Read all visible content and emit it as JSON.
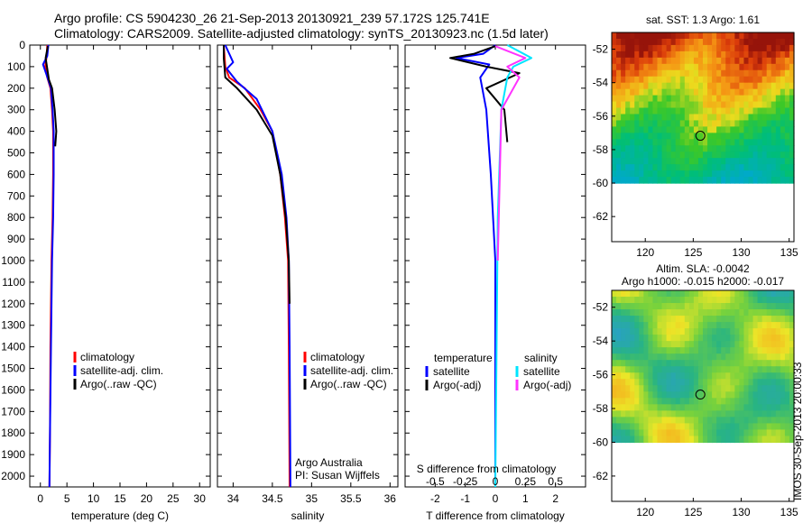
{
  "header": {
    "line1": "Argo profile: CS 5904230_26 21-Sep-2013 20130921_239 57.172S 125.741E",
    "line2": "Climatology: CARS2009. Satellite-adjusted climatology: synTS_20130923.nc (1.5d later)"
  },
  "colors": {
    "climatology": "#ff0000",
    "satellite": "#0000ff",
    "argo": "#000000",
    "sal_satellite": "#00e5ff",
    "sal_argo": "#ff33ff"
  },
  "chart_data": [
    {
      "type": "line",
      "id": "temperature",
      "xlabel": "temperature (deg C)",
      "ylabel": "",
      "xlim": [
        -2,
        32
      ],
      "ylim": [
        2050,
        0
      ],
      "xticks": [
        0,
        5,
        10,
        15,
        20,
        25,
        30
      ],
      "yticks": [
        0,
        100,
        200,
        300,
        400,
        500,
        600,
        700,
        800,
        900,
        1000,
        1100,
        1200,
        1300,
        1400,
        1500,
        1600,
        1700,
        1800,
        1900,
        2000
      ],
      "legend": {
        "items": [
          "climatology",
          "satellite-adj. clim.",
          "Argo(..raw -QC)"
        ],
        "placement": "center"
      },
      "series": [
        {
          "name": "climatology",
          "color": "#ff0000",
          "x": [
            1.3,
            1.2,
            0.9,
            1.3,
            1.9,
            2.2,
            2.4,
            2.4,
            2.3,
            2.1,
            1.9,
            1.8,
            1.7
          ],
          "y": [
            0,
            50,
            100,
            150,
            200,
            300,
            400,
            600,
            800,
            1000,
            1400,
            1800,
            2050
          ]
        },
        {
          "name": "satellite-adj. clim.",
          "color": "#0000ff",
          "x": [
            1.5,
            1.3,
            0.5,
            1.2,
            2.0,
            2.3,
            2.5,
            2.5,
            2.4,
            2.2,
            2.0,
            1.8,
            1.7
          ],
          "y": [
            0,
            50,
            90,
            140,
            200,
            300,
            400,
            600,
            800,
            1000,
            1400,
            1800,
            2050
          ]
        },
        {
          "name": "Argo(..raw -QC)",
          "color": "#000000",
          "x": [
            1.4,
            1.0,
            1.3,
            1.6,
            2.2,
            2.7,
            3.0,
            2.8
          ],
          "y": [
            5,
            60,
            110,
            160,
            200,
            300,
            400,
            470
          ]
        }
      ]
    },
    {
      "type": "line",
      "id": "salinity",
      "xlabel": "salinity",
      "xlim": [
        33.8,
        36.1
      ],
      "ylim": [
        2050,
        0
      ],
      "xticks": [
        34,
        34.5,
        35,
        35.5,
        36
      ],
      "legend": {
        "items": [
          "climatology",
          "satellite-adj. clim.",
          "Argo(..raw -QC)"
        ],
        "placement": "lower-center"
      },
      "annotations": [
        "Argo Australia",
        "PI: Susan Wijffels"
      ],
      "series": [
        {
          "name": "climatology",
          "color": "#ff0000",
          "x": [
            33.88,
            33.9,
            33.95,
            34.15,
            34.35,
            34.5,
            34.6,
            34.66,
            34.7,
            34.71,
            34.72
          ],
          "y": [
            0,
            100,
            150,
            200,
            300,
            400,
            600,
            800,
            1000,
            1400,
            2050
          ]
        },
        {
          "name": "satellite-adj. clim.",
          "color": "#0000ff",
          "x": [
            33.9,
            34.0,
            33.92,
            34.05,
            34.3,
            34.5,
            34.62,
            34.68,
            34.71,
            34.72,
            34.73
          ],
          "y": [
            0,
            80,
            110,
            170,
            250,
            400,
            600,
            800,
            1000,
            1400,
            2050
          ]
        },
        {
          "name": "Argo(..raw -QC)",
          "color": "#000000",
          "x": [
            33.88,
            33.88,
            33.9,
            34.05,
            34.3,
            34.5,
            34.6,
            34.67,
            34.71,
            34.72
          ],
          "y": [
            0,
            60,
            150,
            200,
            300,
            420,
            600,
            800,
            1000,
            1200
          ]
        }
      ]
    },
    {
      "type": "line",
      "id": "differences",
      "xlabel": "T difference from climatology",
      "x2label": "S difference from climatology",
      "xlim": [
        -3,
        3
      ],
      "x2lim": [
        -0.75,
        0.75
      ],
      "ylim": [
        2050,
        0
      ],
      "xticks": [
        -2,
        -1,
        0,
        1,
        2
      ],
      "x2ticks": [
        -0.5,
        -0.25,
        0,
        0.25,
        0.5
      ],
      "legend": {
        "placement": "lower-center",
        "temperature_heading": "temperature",
        "salinity_heading": "salinity",
        "items": [
          "satellite",
          "Argo(-adj)",
          "satellite",
          "Argo(-adj)"
        ]
      },
      "series": [
        {
          "name": "T satellite",
          "color": "#0000ff",
          "x": [
            0.0,
            -0.4,
            -1.3,
            -0.2,
            -0.5,
            -0.3,
            -0.15,
            0.0,
            0.0
          ],
          "y": [
            0,
            40,
            60,
            90,
            150,
            300,
            600,
            1000,
            2050
          ]
        },
        {
          "name": "T Argo(-adj)",
          "color": "#000000",
          "x": [
            0.0,
            -0.7,
            -1.5,
            -0.3,
            0.8,
            -0.3,
            0.3,
            0.4
          ],
          "y": [
            5,
            40,
            60,
            100,
            130,
            200,
            300,
            450
          ]
        },
        {
          "name": "S satellite",
          "color": "#00e5ff",
          "x": [
            0.1,
            0.3,
            0.15,
            0.1,
            0.05,
            0.02,
            0.0
          ],
          "y": [
            0,
            60,
            100,
            150,
            300,
            800,
            2050
          ]
        },
        {
          "name": "S Argo(-adj)",
          "color": "#ff33ff",
          "x": [
            0.0,
            0.25,
            0.1,
            0.2,
            0.05,
            0.02
          ],
          "y": [
            5,
            60,
            100,
            150,
            300,
            1000
          ]
        }
      ]
    },
    {
      "type": "heatmap",
      "id": "sst-map",
      "title": "sat. SST: 1.3  Argo: 1.61",
      "xlim": [
        116.5,
        135.5
      ],
      "ylim": [
        -63.5,
        -51
      ],
      "xticks": [
        120,
        125,
        130,
        135
      ],
      "yticks": [
        -52,
        -54,
        -56,
        -58,
        -60,
        -62
      ],
      "marker": {
        "lon": 125.741,
        "lat": -57.172
      },
      "data_coverage_lat_min": -60
    },
    {
      "type": "heatmap",
      "id": "sla-map",
      "title": "Altim. SLA: -0.0042",
      "subtitle": "Argo h1000: -0.015 h2000: -0.017",
      "xlim": [
        116.5,
        135.5
      ],
      "ylim": [
        -63.5,
        -51
      ],
      "xticks": [
        120,
        125,
        130,
        135
      ],
      "yticks": [
        -52,
        -54,
        -56,
        -58,
        -60,
        -62
      ],
      "marker": {
        "lon": 125.741,
        "lat": -57.172
      },
      "data_coverage_lat_min": -60,
      "side_label": "IMOS 30-Sep-2013 20:00:33"
    }
  ]
}
